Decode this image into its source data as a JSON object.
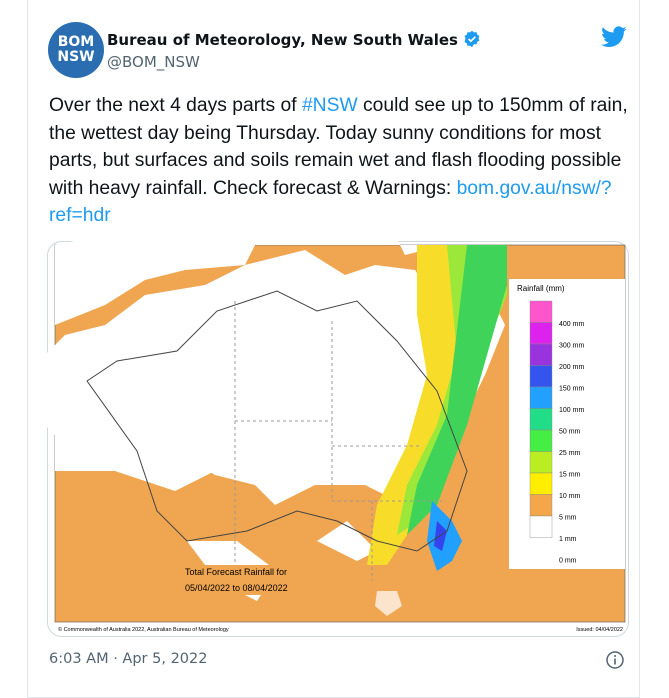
{
  "tweet": {
    "avatar": {
      "line1": "BOM",
      "line2": "NSW"
    },
    "author": "Bureau of Meteorology, New South Wales",
    "handle": "@BOM_NSW",
    "text_parts": [
      "Over the next 4 days parts of ",
      "#NSW",
      " could see up to 150mm of rain, the wettest day being Thursday. Today sunny conditions for most parts, but surfaces and soils remain wet and flash flooding possible with heavy rainfall. Check forecast & Warnings: ",
      "bom.gov.au/nsw/?ref=hdr"
    ],
    "timestamp": "6:03 AM · Apr 5, 2022"
  },
  "map": {
    "legend_title": "Rainfall (mm)",
    "legend_labels": [
      "400 mm",
      "300 mm",
      "200 mm",
      "150 mm",
      "100 mm",
      "50 mm",
      "25 mm",
      "15 mm",
      "10 mm",
      "5 mm",
      "1 mm",
      "0 mm"
    ],
    "caption_line1": "Total Forecast Rainfall for",
    "caption_line2": "05/04/2022 to 08/04/2022",
    "copyright": "© Commonwealth of Australia 2022, Australian Bureau of Meteorology",
    "issued": "Issued: 04/04/2022"
  }
}
